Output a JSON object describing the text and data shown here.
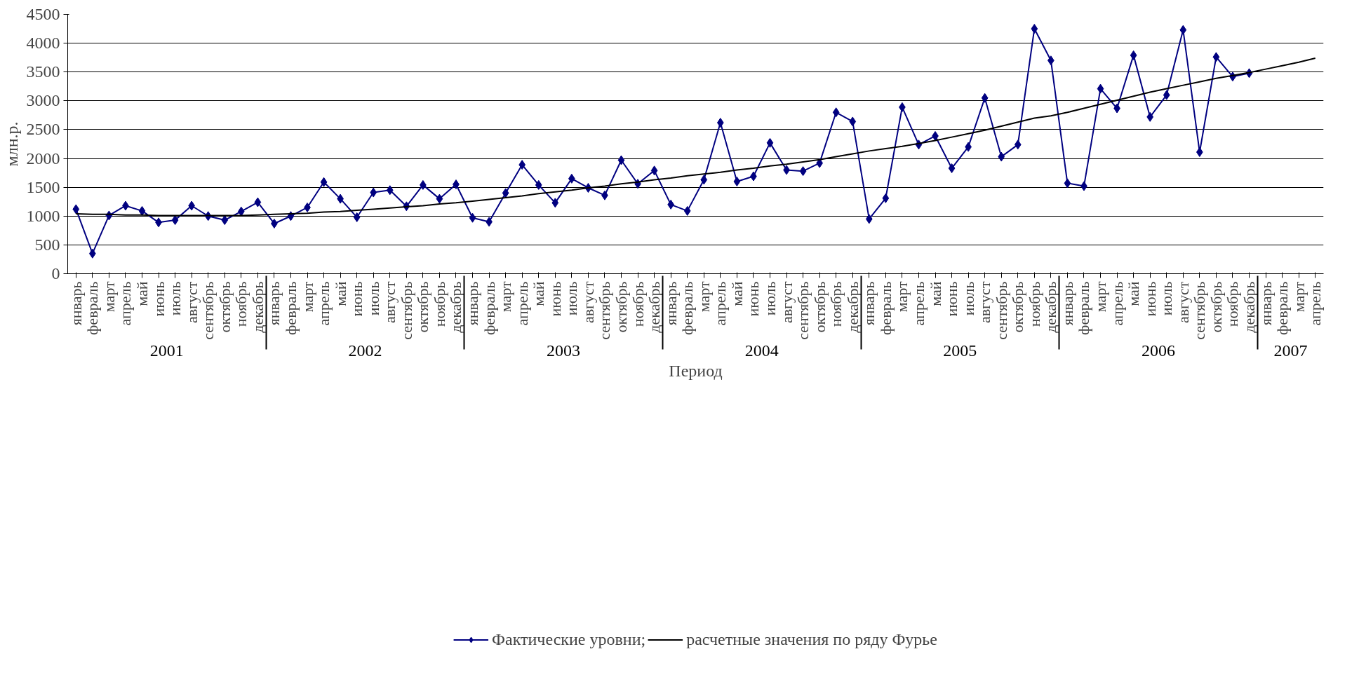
{
  "chart_data": {
    "type": "line",
    "xlabel": "Период",
    "ylabel": "млн.р.",
    "categories": [
      "январь",
      "февраль",
      "март",
      "апрель",
      "май",
      "июнь",
      "июль",
      "август",
      "сентябрь",
      "октябрь",
      "ноябрь",
      "декабрь",
      "январь",
      "февраль",
      "март",
      "апрель",
      "май",
      "июнь",
      "июль",
      "август",
      "сентябрь",
      "октябрь",
      "ноябрь",
      "декабрь",
      "январь",
      "февраль",
      "март",
      "апрель",
      "май",
      "июнь",
      "июль",
      "август",
      "сентябрь",
      "октябрь",
      "ноябрь",
      "декабрь",
      "январь",
      "февраль",
      "март",
      "апрель",
      "май",
      "июнь",
      "июль",
      "август",
      "сентябрь",
      "октябрь",
      "ноябрь",
      "декабрь",
      "январь",
      "февраль",
      "март",
      "апрель",
      "май",
      "июнь",
      "июль",
      "август",
      "сентябрь",
      "октябрь",
      "ноябрь",
      "декабрь",
      "январь",
      "февраль",
      "март",
      "апрель",
      "май",
      "июнь",
      "июль",
      "август",
      "сентябрь",
      "октябрь",
      "ноябрь",
      "декабрь",
      "январь",
      "февраль",
      "март",
      "апрель"
    ],
    "annotations": [
      "2001",
      "2002",
      "2003",
      "2004",
      "2005",
      "2006",
      "2007"
    ],
    "series": [
      {
        "name": "Фактические уровни;",
        "color": "#000080",
        "marker": "diamond",
        "values": [
          1120,
          350,
          1010,
          1180,
          1090,
          890,
          930,
          1180,
          1000,
          930,
          1080,
          1240,
          870,
          1000,
          1150,
          1590,
          1300,
          980,
          1410,
          1450,
          1170,
          1540,
          1300,
          1550,
          970,
          900,
          1400,
          1890,
          1540,
          1230,
          1650,
          1490,
          1360,
          1970,
          1560,
          1790,
          1200,
          1090,
          1630,
          2620,
          1600,
          1690,
          2270,
          1800,
          1780,
          1920,
          2800,
          2640,
          950,
          1310,
          2890,
          2240,
          2390,
          1830,
          2200,
          3050,
          2030,
          2240,
          4250,
          3700,
          1570,
          1520,
          3210,
          2870,
          3790,
          2720,
          3100,
          4230,
          2110,
          3760,
          3420,
          3480,
          null,
          null,
          null,
          null
        ]
      },
      {
        "name": "расчетные значения по ряду Фурье",
        "color": "#000000",
        "marker": "none",
        "values": [
          1040,
          1030,
          1030,
          1020,
          1020,
          1010,
          1010,
          1010,
          1010,
          1010,
          1010,
          1020,
          1030,
          1040,
          1050,
          1070,
          1080,
          1100,
          1120,
          1140,
          1160,
          1180,
          1210,
          1230,
          1260,
          1290,
          1320,
          1350,
          1390,
          1420,
          1450,
          1490,
          1520,
          1560,
          1590,
          1630,
          1660,
          1700,
          1730,
          1760,
          1800,
          1830,
          1870,
          1900,
          1940,
          1980,
          2030,
          2080,
          2130,
          2170,
          2210,
          2260,
          2310,
          2370,
          2430,
          2490,
          2560,
          2630,
          2700,
          2740,
          2800,
          2870,
          2940,
          3010,
          3080,
          3150,
          3210,
          3270,
          3330,
          3390,
          3440,
          3490,
          3550,
          3610,
          3670,
          3740
        ]
      }
    ],
    "ylim": [
      0,
      4500
    ],
    "yticks": [
      0,
      500,
      1000,
      1500,
      2000,
      2500,
      3000,
      3500,
      4000,
      4500
    ],
    "grid": "y",
    "legend": "bottom"
  }
}
